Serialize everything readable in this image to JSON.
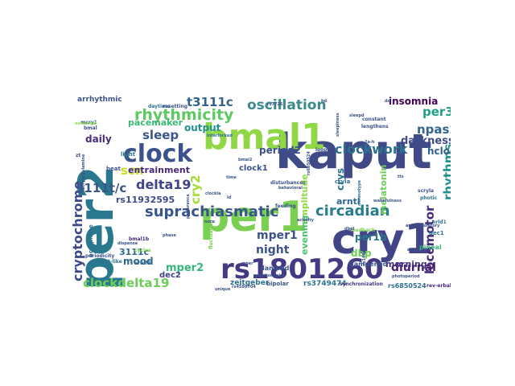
{
  "wordcloud": {
    "words": [
      {
        "text": "kaput",
        "color": "#404a87"
      },
      {
        "text": "per2",
        "color": "#2a788e"
      },
      {
        "text": "per1",
        "color": "#7ad151"
      },
      {
        "text": "cry1",
        "color": "#414487"
      },
      {
        "text": "bmal1",
        "color": "#8fd744"
      },
      {
        "text": "rs1801260",
        "color": "#443a83"
      },
      {
        "text": "clock",
        "color": "#3b528b"
      },
      {
        "text": "suprachiasmatic",
        "color": "#39568c"
      },
      {
        "text": "rhythmicity",
        "color": "#5ec962"
      },
      {
        "text": "oscillation",
        "color": "#3b8a8c"
      },
      {
        "text": "circadian",
        "color": "#287c8e"
      },
      {
        "text": "clockwork",
        "color": "#2c728e"
      },
      {
        "text": "cryptochrome",
        "color": "#3e4a89"
      },
      {
        "text": "clockdelta19",
        "color": "#6cce59"
      },
      {
        "text": "delta19",
        "color": "#414487"
      },
      {
        "text": "3111t/c",
        "color": "#39568c"
      },
      {
        "text": "t3111c",
        "color": "#33638d"
      },
      {
        "text": "locomotor",
        "color": "#472d7b"
      },
      {
        "text": "rhythms",
        "color": "#21908d"
      },
      {
        "text": "pacemaker",
        "color": "#3aba76"
      },
      {
        "text": "sleep",
        "color": "#39568c"
      },
      {
        "text": "scn",
        "color": "#c8e020"
      },
      {
        "text": "cry2",
        "color": "#a5db36"
      },
      {
        "text": "per3",
        "color": "#1fa088"
      },
      {
        "text": "npas2",
        "color": "#32648e"
      },
      {
        "text": "darkness",
        "color": "#3e4c8a"
      },
      {
        "text": "hclock",
        "color": "#33638d"
      },
      {
        "text": "insomnia",
        "color": "#440154"
      },
      {
        "text": "diurnal",
        "color": "#482173"
      },
      {
        "text": "mper1",
        "color": "#3b528b"
      },
      {
        "text": "night",
        "color": "#3b528b"
      },
      {
        "text": "mper2",
        "color": "#35b779"
      },
      {
        "text": "period2",
        "color": "#3b528b"
      },
      {
        "text": "entrainment",
        "color": "#482878"
      },
      {
        "text": "daily",
        "color": "#472d7b"
      },
      {
        "text": "output",
        "color": "#21918c"
      },
      {
        "text": "melatonin",
        "color": "#6ece58"
      },
      {
        "text": "amplitude",
        "color": "#8fd744"
      },
      {
        "text": "evening",
        "color": "#4ac16d"
      },
      {
        "text": "morning",
        "color": "#46337f"
      },
      {
        "text": "dbp",
        "color": "#6ece58"
      },
      {
        "text": "per1b",
        "color": "#2a788e"
      },
      {
        "text": "arntl",
        "color": "#31688e"
      },
      {
        "text": "crys",
        "color": "#2e6f8e"
      },
      {
        "text": "mood",
        "color": "#31688e"
      },
      {
        "text": "3111c",
        "color": "#31688e"
      },
      {
        "text": "rs11932595",
        "color": "#3e4989"
      },
      {
        "text": "clock1",
        "color": "#3b528b"
      },
      {
        "text": "dec2",
        "color": "#414487"
      },
      {
        "text": "zeitgeber",
        "color": "#2d708e"
      },
      {
        "text": "bipolar",
        "color": "#3b528b"
      },
      {
        "text": "rs3749474",
        "color": "#2c728e"
      },
      {
        "text": "synchronization",
        "color": "#46337f"
      },
      {
        "text": "rs6850524",
        "color": "#2c728e"
      },
      {
        "text": "rev-erbalpha",
        "color": "#482878"
      },
      {
        "text": "dampened",
        "color": "#3b528b"
      },
      {
        "text": "damped",
        "color": "#3b528b"
      },
      {
        "text": "arrhythmic",
        "color": "#3b528b"
      },
      {
        "text": "mcry1",
        "color": "#31688e"
      },
      {
        "text": "bmal1b",
        "color": "#472d7b"
      },
      {
        "text": "light",
        "color": "#2c728e"
      },
      {
        "text": "beat",
        "color": "#3b528b"
      },
      {
        "text": "acrophase",
        "color": "#2c728e"
      },
      {
        "text": "periodicity",
        "color": "#3b528b"
      },
      {
        "text": "arntl2",
        "color": "#31688e"
      },
      {
        "text": "arnt-like",
        "color": "#2c728e"
      },
      {
        "text": "cycles",
        "color": "#7ad151"
      },
      {
        "text": "dec1",
        "color": "#2c728e"
      },
      {
        "text": "pineal",
        "color": "#35b779"
      },
      {
        "text": "nrld1",
        "color": "#2c728e"
      },
      {
        "text": "feeding",
        "color": "#3b528b"
      },
      {
        "text": "disturbances",
        "color": "#3b528b"
      },
      {
        "text": "loops",
        "color": "#3b528b"
      },
      {
        "text": "cryla",
        "color": "#2c728e"
      },
      {
        "text": "daytime",
        "color": "#2c728e"
      },
      {
        "text": "resetting",
        "color": "#3b528b"
      },
      {
        "text": "interlocked",
        "color": "#2c728e"
      },
      {
        "text": "constant",
        "color": "#3b528b"
      },
      {
        "text": "lengthens",
        "color": "#3b528b"
      },
      {
        "text": "2a-h",
        "color": "#3b528b"
      },
      {
        "text": "sleepiness",
        "color": "#3b528b"
      },
      {
        "text": "nocturnal",
        "color": "#90d743"
      },
      {
        "text": "zt",
        "color": "#3b528b"
      },
      {
        "text": "bmal",
        "color": "#3b528b"
      },
      {
        "text": "rs4580704",
        "color": "#3b528b"
      },
      {
        "text": "unique",
        "color": "#3b528b"
      },
      {
        "text": "fluctuation",
        "color": "#7ad151"
      },
      {
        "text": "feedback",
        "color": "#7ad151"
      },
      {
        "text": "photoperiod",
        "color": "#3b528b"
      },
      {
        "text": "chronotype",
        "color": "#2c728e"
      },
      {
        "text": "wakefulness",
        "color": "#3b528b"
      },
      {
        "text": "dd",
        "color": "#3b528b"
      },
      {
        "text": "nora",
        "color": "#3b528b"
      },
      {
        "text": "photic",
        "color": "#2c728e"
      },
      {
        "text": "scryla",
        "color": "#3b528b"
      },
      {
        "text": "acrylalkylamine",
        "color": "#3b528b"
      },
      {
        "text": "dispense",
        "color": "#3b528b"
      },
      {
        "text": "phase",
        "color": "#3b528b"
      },
      {
        "text": "aub",
        "color": "#3b528b"
      },
      {
        "text": "autoregulatory",
        "color": "#3b528b"
      },
      {
        "text": "questionnaire",
        "color": "#3b528b"
      },
      {
        "text": "rs7726",
        "color": "#3b528b"
      },
      {
        "text": "rs6850524",
        "color": "#3b528b"
      },
      {
        "text": "mper",
        "color": "#3b528b"
      },
      {
        "text": "clockla",
        "color": "#3b528b"
      },
      {
        "text": "dbpl",
        "color": "#3b528b"
      },
      {
        "text": "ld",
        "color": "#3b528b"
      },
      {
        "text": "time",
        "color": "#3b528b"
      },
      {
        "text": "behavioral",
        "color": "#3b528b"
      },
      {
        "text": "preference",
        "color": "#3b528b"
      },
      {
        "text": "rs1464490",
        "color": "#3b528b"
      },
      {
        "text": "tts",
        "color": "#3b528b"
      },
      {
        "text": "activity",
        "color": "#3b528b"
      },
      {
        "text": "bmal2",
        "color": "#3b528b"
      },
      {
        "text": "sleepd",
        "color": "#3b528b"
      },
      {
        "text": "hd",
        "color": "#3b528b"
      }
    ]
  }
}
